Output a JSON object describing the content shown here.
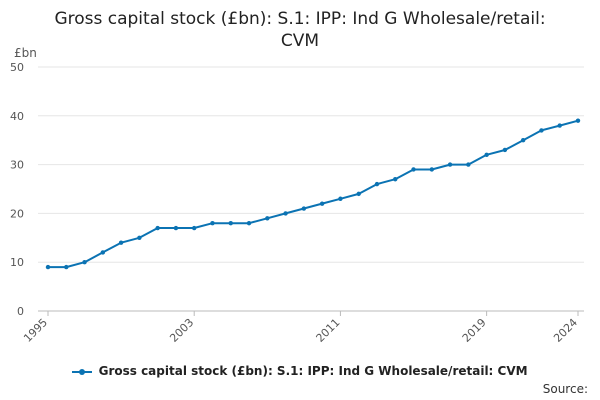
{
  "chart_data": {
    "type": "line",
    "title_lines": [
      "Gross capital stock (£bn): S.1: IPP: Ind G Wholesale/retail:",
      "CVM"
    ],
    "ylabel": "£bn",
    "xlabel": "",
    "ylim": [
      0,
      50
    ],
    "yticks": [
      0,
      10,
      20,
      30,
      40,
      50
    ],
    "xlim": [
      1995,
      2024
    ],
    "xticks": [
      "1995",
      "2003",
      "2011",
      "2019",
      "2024"
    ],
    "grid": true,
    "legend_position": "bottom",
    "series": [
      {
        "name": "Gross capital stock (£bn): S.1: IPP: Ind G Wholesale/retail: CVM",
        "color": "#0b73b3",
        "x": [
          1995,
          1996,
          1997,
          1998,
          1999,
          2000,
          2001,
          2002,
          2003,
          2004,
          2005,
          2006,
          2007,
          2008,
          2009,
          2010,
          2011,
          2012,
          2013,
          2014,
          2015,
          2016,
          2017,
          2018,
          2019,
          2020,
          2021,
          2022,
          2023,
          2024
        ],
        "values": [
          9,
          9,
          10,
          12,
          14,
          15,
          17,
          17,
          17,
          18,
          18,
          18,
          19,
          20,
          21,
          22,
          23,
          24,
          26,
          27,
          29,
          29,
          30,
          30,
          32,
          33,
          35,
          37,
          38,
          39
        ]
      }
    ],
    "source_label": "Source:"
  }
}
